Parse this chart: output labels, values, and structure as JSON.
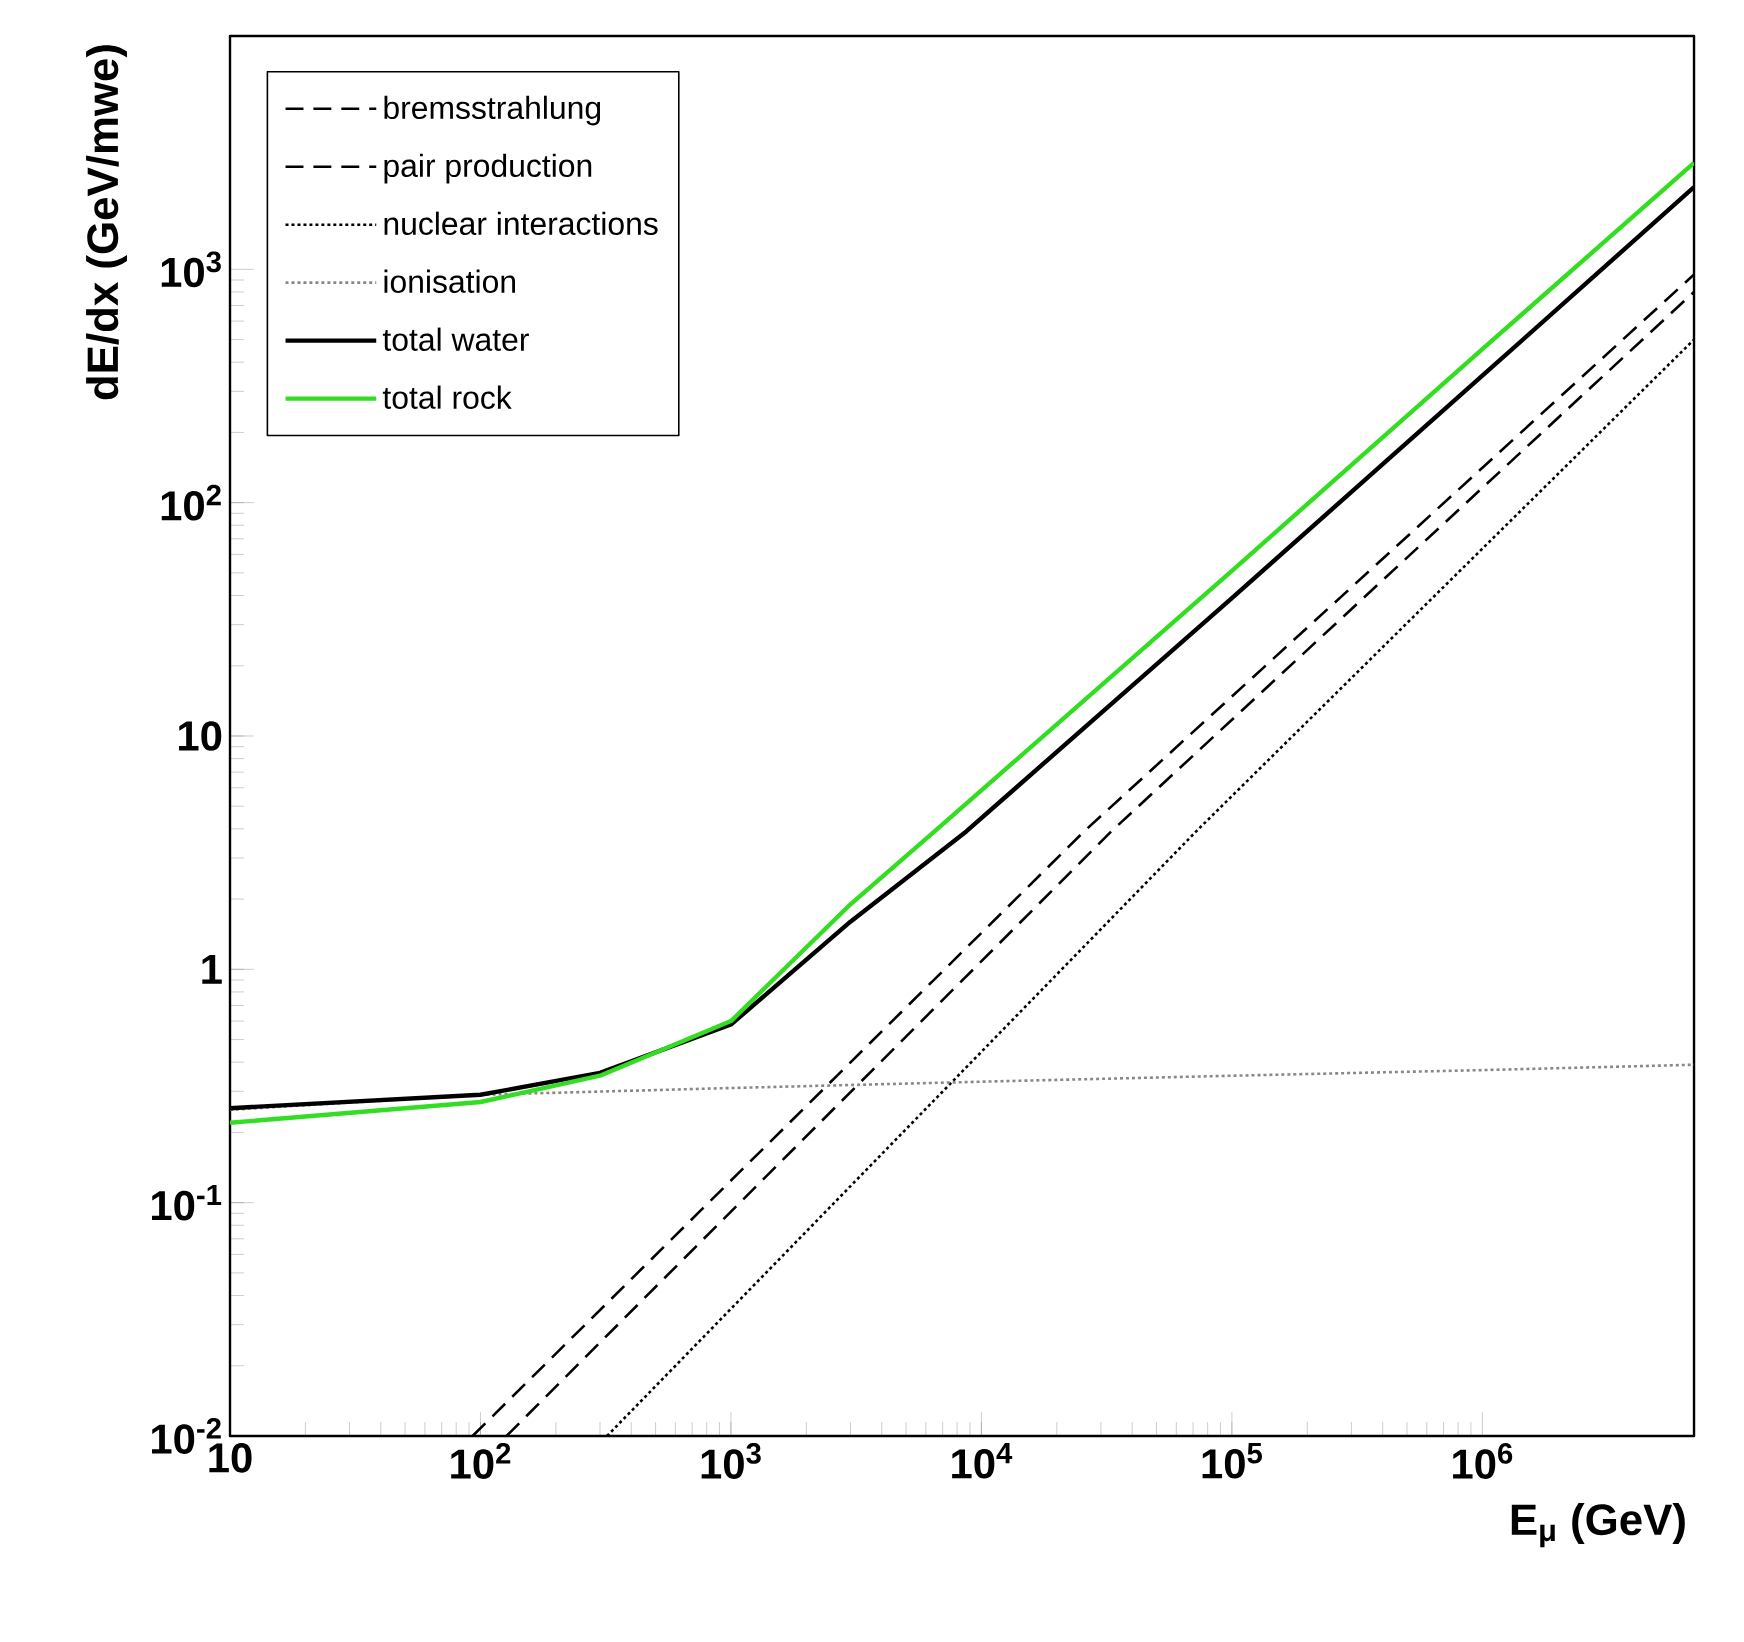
{
  "chart_data": {
    "type": "line",
    "xlabel": "E$_{μ}$ (GeV)",
    "ylabel": "dE/dx (GeV/mwe)",
    "log": "xy",
    "legend": "top left",
    "marker": "none",
    "grid": false,
    "xlim": [
      10,
      7000000
    ],
    "ylim": [
      0.01,
      10000
    ],
    "xticks": [
      10,
      {
        "value": 100,
        "label": "10$^{2}$"
      },
      {
        "value": 1000,
        "label": "10$^{3}$"
      },
      {
        "value": 10000,
        "label": "10$^{4}$"
      },
      {
        "value": 100000,
        "label": "10$^{5}$"
      },
      {
        "value": 1000000,
        "label": "10$^{6}$"
      }
    ],
    "yticks": [
      {
        "value": 0.01,
        "label": "10$^{-2}$"
      },
      {
        "value": 0.1,
        "label": "10$^{-1}$"
      },
      1,
      10,
      {
        "value": 100,
        "label": "10$^{2}$"
      },
      {
        "value": 1000,
        "label": "10$^{3}$"
      }
    ],
    "series": [
      {
        "name": "bremsstrahlung",
        "color": "#000000",
        "line_style": "dashed",
        "x": [
          127,
          33000,
          7000000
        ],
        "values": [
          0.01,
          3.9,
          800
        ]
      },
      {
        "name": "pair production",
        "color": "#000000",
        "line_style": "dashed",
        "x": [
          93,
          25700,
          7000000
        ],
        "values": [
          0.01,
          3.9,
          950
        ]
      },
      {
        "name": "nuclear interactions",
        "color": "#000000",
        "line_style": "dotted",
        "x": [
          320,
          72000,
          7000000
        ],
        "values": [
          0.01,
          3.9,
          500
        ]
      },
      {
        "name": "ionisation",
        "color": "#888888",
        "line_style": "dotted",
        "x": [
          10,
          100,
          1000,
          10000,
          100000,
          1000000,
          7000000
        ],
        "values": [
          0.25,
          0.29,
          0.31,
          0.33,
          0.35,
          0.37,
          0.39
        ]
      },
      {
        "name": "total water",
        "color": "#000000",
        "line_style": "solid",
        "x": [
          10,
          100,
          300,
          1000,
          3000,
          8700,
          100000,
          1000000,
          7000000
        ],
        "values": [
          0.254,
          0.29,
          0.36,
          0.58,
          1.6,
          3.9,
          39,
          350,
          2250
        ]
      },
      {
        "name": "total rock",
        "color": "#33dd22",
        "line_style": "solid",
        "x": [
          10,
          100,
          300,
          1000,
          3000,
          6500,
          100000,
          1000000,
          7000000
        ],
        "values": [
          0.22,
          0.27,
          0.35,
          0.6,
          1.9,
          3.9,
          51,
          455,
          2860
        ]
      }
    ]
  }
}
